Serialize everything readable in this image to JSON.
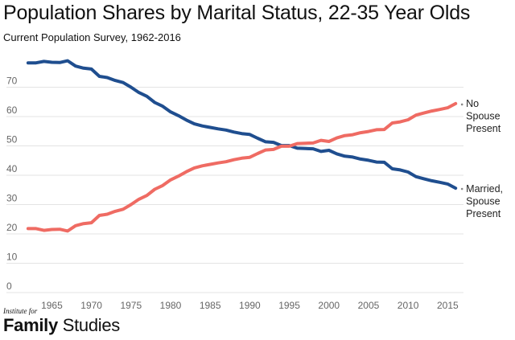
{
  "chart_data": {
    "type": "line",
    "title": "Population Shares by Marital Status, 22-35 Year Olds",
    "subtitle": "Current Population Survey, 1962-2016",
    "xlabel": "",
    "ylabel": "",
    "xlim": [
      1961.5,
      2017
    ],
    "ylim": [
      0,
      80
    ],
    "x_ticks": [
      1965,
      1970,
      1975,
      1980,
      1985,
      1990,
      1995,
      2000,
      2005,
      2010,
      2015
    ],
    "y_ticks": [
      0,
      10,
      20,
      30,
      40,
      50,
      60,
      70
    ],
    "grid": "horizontal",
    "legend": "direct labels at line ends (right)",
    "x": [
      1962,
      1963,
      1964,
      1965,
      1966,
      1967,
      1968,
      1969,
      1970,
      1971,
      1972,
      1973,
      1974,
      1975,
      1976,
      1977,
      1978,
      1979,
      1980,
      1981,
      1982,
      1983,
      1984,
      1985,
      1986,
      1987,
      1988,
      1989,
      1990,
      1991,
      1992,
      1993,
      1994,
      1995,
      1996,
      1997,
      1998,
      1999,
      2000,
      2001,
      2002,
      2003,
      2004,
      2005,
      2006,
      2007,
      2008,
      2009,
      2010,
      2011,
      2012,
      2013,
      2014,
      2015,
      2016
    ],
    "series": [
      {
        "name": "Married, Spouse Present",
        "label_lines": [
          "Married,",
          "Spouse",
          "Present"
        ],
        "color": "#1f4e8f",
        "values": [
          78.3,
          78.3,
          78.8,
          78.5,
          78.4,
          79.0,
          77.2,
          76.5,
          76.2,
          73.7,
          73.3,
          72.3,
          71.6,
          70.0,
          68.2,
          66.9,
          64.8,
          63.5,
          61.6,
          60.3,
          58.8,
          57.5,
          56.8,
          56.3,
          55.8,
          55.4,
          54.7,
          54.2,
          53.9,
          52.6,
          51.4,
          51.2,
          50.1,
          50.1,
          49.2,
          49.1,
          49.0,
          48.1,
          48.5,
          47.3,
          46.5,
          46.2,
          45.5,
          45.1,
          44.5,
          44.4,
          42.2,
          41.8,
          41.1,
          39.5,
          38.8,
          38.1,
          37.6,
          37.0,
          35.6
        ]
      },
      {
        "name": "No Spouse Present",
        "label_lines": [
          "No",
          "Spouse",
          "Present"
        ],
        "color": "#ef6b63",
        "values": [
          21.8,
          21.8,
          21.2,
          21.5,
          21.6,
          21.0,
          22.8,
          23.5,
          23.8,
          26.3,
          26.7,
          27.7,
          28.4,
          30.0,
          31.8,
          33.1,
          35.2,
          36.5,
          38.4,
          39.7,
          41.2,
          42.5,
          43.2,
          43.7,
          44.2,
          44.6,
          45.3,
          45.8,
          46.1,
          47.4,
          48.6,
          48.8,
          49.9,
          49.9,
          50.8,
          50.9,
          51.0,
          51.9,
          51.5,
          52.7,
          53.5,
          53.8,
          54.5,
          54.9,
          55.5,
          55.6,
          57.8,
          58.2,
          58.9,
          60.5,
          61.2,
          61.9,
          62.4,
          63.0,
          64.4
        ]
      }
    ]
  },
  "brand": {
    "small": "Institute for",
    "big_bold": "Family",
    "big_rest": " Studies"
  }
}
